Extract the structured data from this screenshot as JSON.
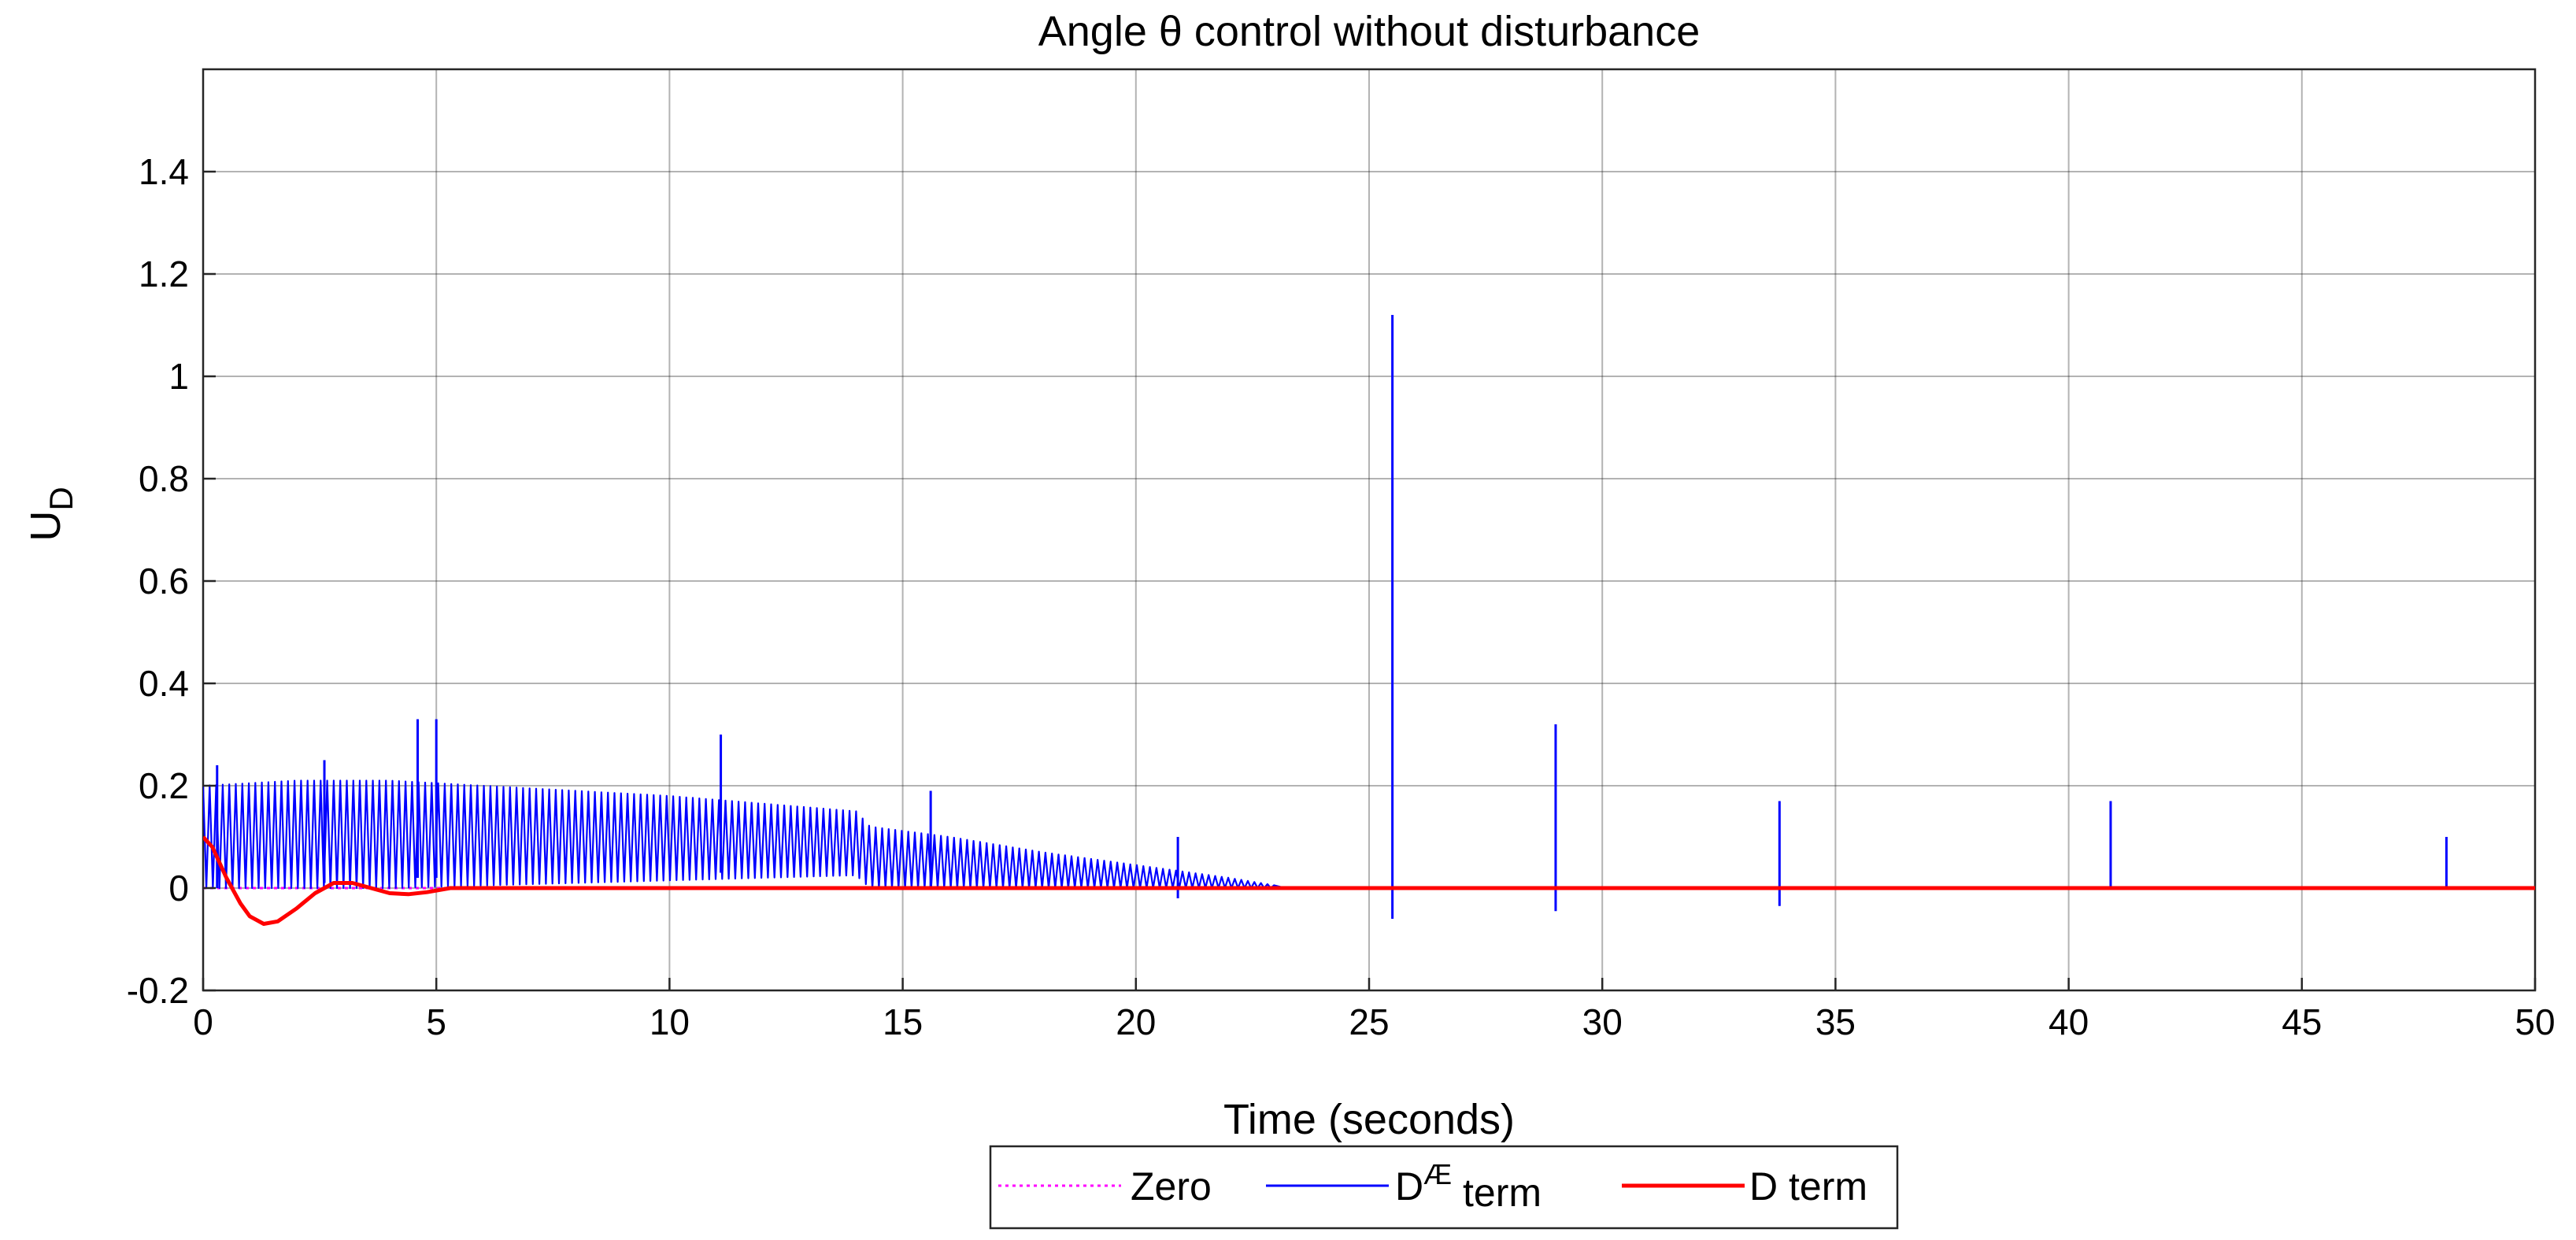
{
  "chart_data": {
    "type": "line",
    "title": "Angle θ control without disturbance",
    "xlabel": "Time (seconds)",
    "ylabel": {
      "main": "U",
      "sub": "D"
    },
    "xlim": [
      0,
      50
    ],
    "ylim": [
      -0.2,
      1.6
    ],
    "xticks": [
      0,
      5,
      10,
      15,
      20,
      25,
      30,
      35,
      40,
      45,
      50
    ],
    "xtick_labels": [
      "0",
      "5",
      "10",
      "15",
      "20",
      "25",
      "30",
      "35",
      "40",
      "45",
      "50"
    ],
    "yticks": [
      -0.2,
      0,
      0.2,
      0.4,
      0.6,
      0.8,
      1.0,
      1.2,
      1.4
    ],
    "ytick_labels": [
      "-0.2",
      "0",
      "0.2",
      "0.4",
      "0.6",
      "0.8",
      "1",
      "1.2",
      "1.4"
    ],
    "grid": true,
    "legend_position": "bottom-outside",
    "series": [
      {
        "name": "Zero",
        "style": "dotted",
        "color": "#ff00ff",
        "x": [
          0,
          50
        ],
        "y": [
          0,
          0
        ]
      },
      {
        "name": "D term",
        "legend_main": "D",
        "legend_sup": "Æ",
        "legend_after": " term",
        "style": "solid-thin",
        "color": "#0000ff",
        "envelope": {
          "x": [
            0,
            2,
            4,
            6,
            8,
            10,
            12,
            14,
            14.3,
            16,
            18,
            20,
            22,
            23,
            50
          ],
          "upper": [
            0.2,
            0.21,
            0.21,
            0.2,
            0.19,
            0.18,
            0.165,
            0.15,
            0.12,
            0.1,
            0.07,
            0.045,
            0.02,
            0.005,
            0.005
          ],
          "lower": [
            0.0,
            0.0,
            0.0,
            0.005,
            0.01,
            0.015,
            0.02,
            0.025,
            0.0,
            0.0,
            0.0,
            0.0,
            0.0,
            0.0,
            0.0
          ],
          "oscillation_step": 0.14
        },
        "spikes": [
          {
            "x": 0.3,
            "y": 0.24,
            "ymin": 0.0
          },
          {
            "x": 2.6,
            "y": 0.25,
            "ymin": 0.01
          },
          {
            "x": 4.6,
            "y": 0.33,
            "ymin": 0.02
          },
          {
            "x": 5.0,
            "y": 0.33,
            "ymin": 0.02
          },
          {
            "x": 11.1,
            "y": 0.3,
            "ymin": 0.03
          },
          {
            "x": 15.6,
            "y": 0.19,
            "ymin": 0.0
          },
          {
            "x": 20.9,
            "y": 0.1,
            "ymin": -0.02
          },
          {
            "x": 25.5,
            "y": 1.12,
            "ymin": -0.06
          },
          {
            "x": 29.0,
            "y": 0.32,
            "ymin": -0.045
          },
          {
            "x": 33.8,
            "y": 0.17,
            "ymin": -0.035
          },
          {
            "x": 40.9,
            "y": 0.17,
            "ymin": 0.0
          },
          {
            "x": 48.1,
            "y": 0.1,
            "ymin": 0.0
          }
        ]
      },
      {
        "name": "D term",
        "style": "solid-thick",
        "color": "#ff0000",
        "x": [
          0,
          0.2,
          0.5,
          0.8,
          1.0,
          1.3,
          1.6,
          2.0,
          2.4,
          2.8,
          3.2,
          3.6,
          4.0,
          4.4,
          4.8,
          5.3,
          6,
          8,
          10,
          15,
          20,
          25,
          50
        ],
        "y": [
          0.1,
          0.08,
          0.02,
          -0.03,
          -0.055,
          -0.07,
          -0.065,
          -0.04,
          -0.01,
          0.01,
          0.01,
          0.0,
          -0.01,
          -0.012,
          -0.008,
          0.0,
          0.0,
          0.0,
          0.0,
          0.0,
          0.0,
          0.0,
          0.0
        ]
      }
    ]
  }
}
